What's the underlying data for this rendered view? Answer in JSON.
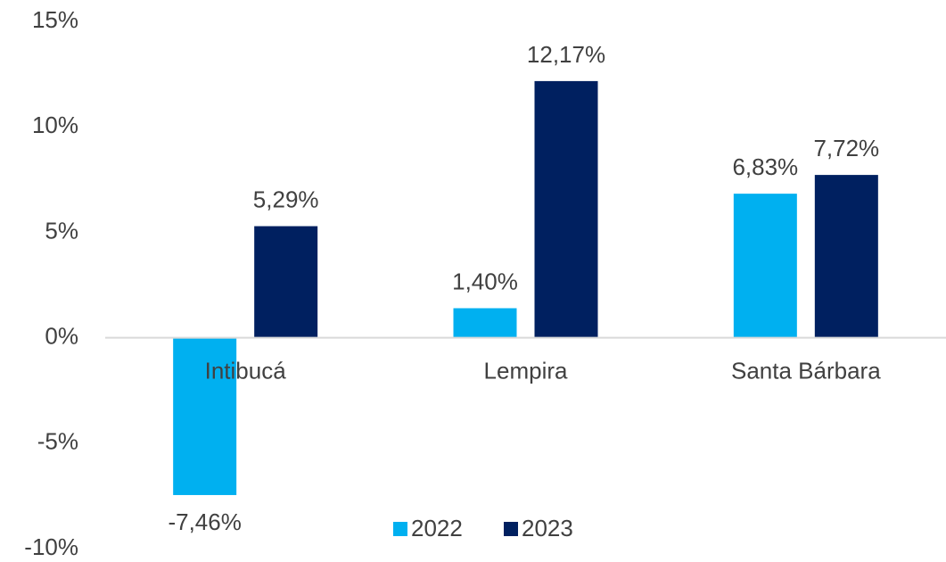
{
  "chart_data": {
    "type": "bar",
    "categories": [
      "Intibucá",
      "Lempira",
      "Santa Bárbara"
    ],
    "series": [
      {
        "name": "2022",
        "color": "#00b0f0",
        "values": [
          -7.46,
          1.4,
          6.83
        ],
        "value_labels": [
          "-7,46%",
          "1,40%",
          "6,83%"
        ]
      },
      {
        "name": "2023",
        "color": "#002060",
        "values": [
          5.29,
          12.17,
          7.72
        ],
        "value_labels": [
          "5,29%",
          "12,17%",
          "7,72%"
        ]
      }
    ],
    "ylim": [
      -10,
      15
    ],
    "yticks": [
      {
        "value": -10,
        "label": "-10%"
      },
      {
        "value": -5,
        "label": "-5%"
      },
      {
        "value": 0,
        "label": "0%"
      },
      {
        "value": 5,
        "label": "5%"
      },
      {
        "value": 10,
        "label": "10%"
      },
      {
        "value": 15,
        "label": "15%"
      }
    ],
    "grid": false,
    "legend": "bottom"
  }
}
